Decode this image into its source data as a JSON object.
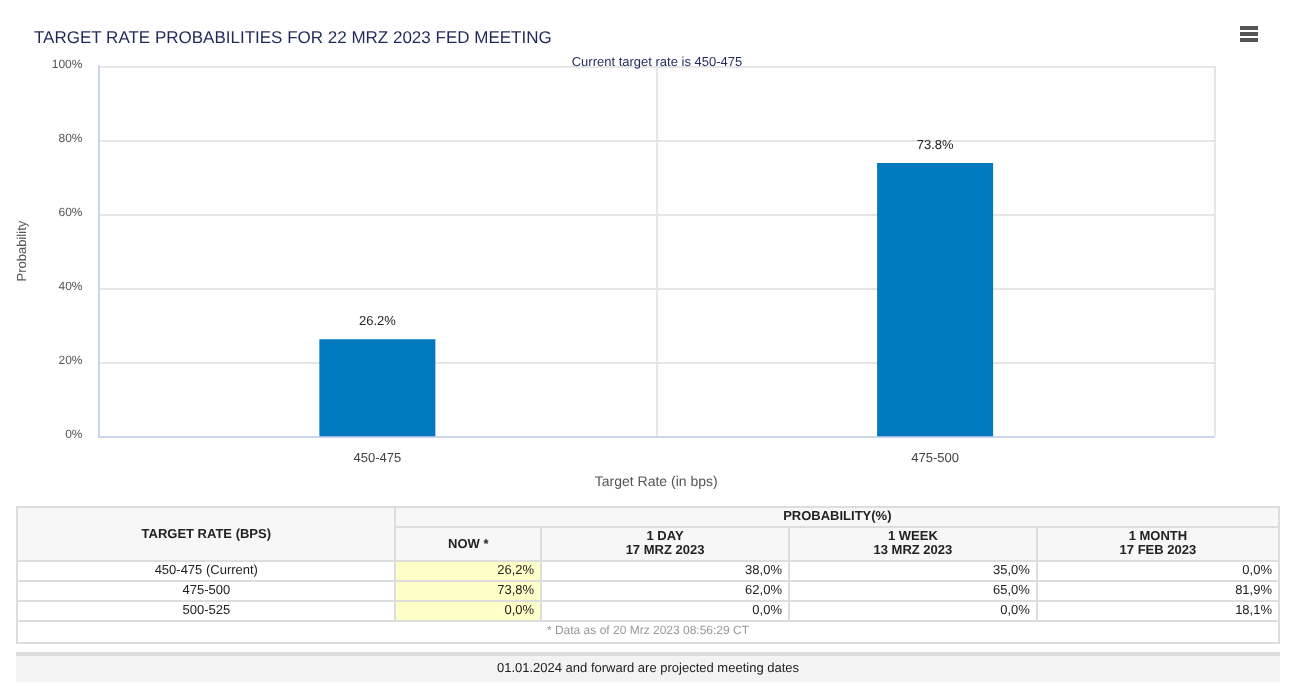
{
  "chart_data": [
    {
      "type": "bar",
      "title": "TARGET RATE PROBABILITIES FOR 22 MRZ 2023 FED MEETING",
      "subtitle": "Current target rate is 450-475",
      "xlabel": "Target Rate (in bps)",
      "ylabel": "Probability",
      "categories": [
        "450-475",
        "475-500"
      ],
      "values": [
        26.2,
        73.8
      ],
      "color": "#0079bf",
      "value_labels": [
        "26.2%",
        "73.8%"
      ],
      "ylim": [
        0,
        100
      ],
      "yticks": [
        {
          "value": 0,
          "label": "0%"
        },
        {
          "value": 20,
          "label": "20%"
        },
        {
          "value": 40,
          "label": "40%"
        },
        {
          "value": 60,
          "label": "60%"
        },
        {
          "value": 80,
          "label": "80%"
        },
        {
          "value": 100,
          "label": "100%"
        }
      ],
      "grid": true
    },
    {
      "type": "other",
      "title": "PROBABILITY(%)",
      "ylabel": "TARGET RATE (BPS)",
      "categories": [
        "NOW *",
        "1 DAY\n17 MRZ 2023",
        "1 WEEK\n13 MRZ 2023",
        "1 MONTH\n17 FEB 2023"
      ],
      "y_categories": [
        "450-475 (Current)",
        "475-500",
        "500-525"
      ],
      "cell_labels": [
        [
          "26,2%",
          "38,0%",
          "35,0%",
          "0,0%"
        ],
        [
          "73,8%",
          "62,0%",
          "65,0%",
          "81,9%"
        ],
        [
          "0,0%",
          "0,0%",
          "0,0%",
          "18,1%"
        ]
      ],
      "annotations": [
        "* Data as of 20 Mrz 2023 08:56:29 CT",
        "01.01.2024 and forward are projected meeting dates"
      ]
    }
  ]
}
